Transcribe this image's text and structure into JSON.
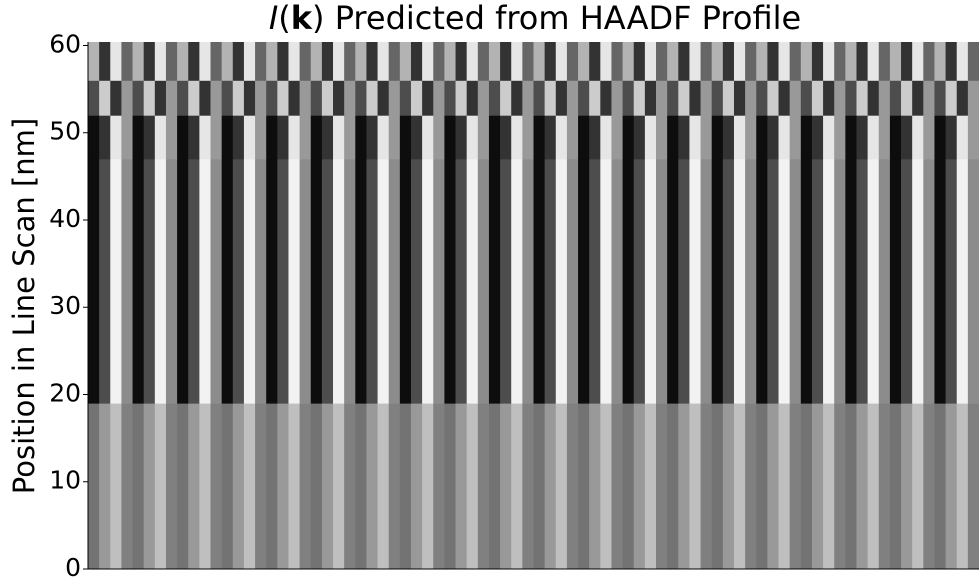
{
  "chart_data": {
    "type": "heatmap",
    "title": [
      "I",
      "(",
      "k",
      ") Predicted from HAADF Profile"
    ],
    "ylabel": "Position in Line Scan [nm]",
    "colormap": "gray",
    "zlim": [
      0,
      1
    ],
    "ylim": [
      0,
      60.4
    ],
    "yticks": [
      0,
      10,
      20,
      30,
      40,
      50,
      60
    ],
    "y_edges": [
      0,
      19,
      47,
      52,
      56,
      60.4
    ],
    "z": [
      [
        0.45,
        0.6,
        0.75,
        0.5,
        0.45,
        0.6,
        0.75,
        0.5,
        0.45,
        0.6,
        0.75,
        0.5,
        0.45,
        0.6,
        0.75,
        0.5,
        0.45,
        0.6,
        0.75,
        0.5,
        0.45,
        0.6,
        0.75,
        0.5,
        0.45,
        0.6,
        0.75,
        0.5,
        0.45,
        0.6,
        0.75,
        0.5,
        0.45,
        0.6,
        0.75,
        0.5,
        0.45,
        0.6,
        0.75,
        0.5,
        0.45,
        0.6,
        0.75,
        0.5,
        0.45,
        0.6,
        0.75,
        0.5,
        0.45,
        0.6,
        0.75,
        0.5,
        0.45,
        0.6,
        0.75,
        0.5,
        0.45,
        0.6,
        0.75,
        0.5,
        0.45,
        0.6,
        0.75,
        0.5,
        0.45,
        0.6,
        0.75,
        0.5,
        0.45,
        0.6,
        0.75,
        0.5,
        0.45,
        0.6,
        0.75,
        0.5,
        0.45,
        0.6,
        0.75,
        0.5
      ],
      [
        0.05,
        0.3,
        0.95,
        0.55,
        0.05,
        0.3,
        0.95,
        0.55,
        0.05,
        0.3,
        0.95,
        0.55,
        0.05,
        0.3,
        0.95,
        0.55,
        0.05,
        0.3,
        0.95,
        0.55,
        0.05,
        0.3,
        0.95,
        0.55,
        0.05,
        0.3,
        0.95,
        0.55,
        0.05,
        0.3,
        0.95,
        0.55,
        0.05,
        0.3,
        0.95,
        0.55,
        0.05,
        0.3,
        0.95,
        0.55,
        0.05,
        0.3,
        0.95,
        0.55,
        0.05,
        0.3,
        0.95,
        0.55,
        0.05,
        0.3,
        0.95,
        0.55,
        0.05,
        0.3,
        0.95,
        0.55,
        0.05,
        0.3,
        0.95,
        0.55,
        0.05,
        0.3,
        0.95,
        0.55,
        0.05,
        0.3,
        0.95,
        0.55,
        0.05,
        0.3,
        0.95,
        0.55,
        0.05,
        0.3,
        0.95,
        0.55,
        0.05,
        0.3,
        0.95,
        0.55
      ],
      [
        0.05,
        0.2,
        0.9,
        0.6,
        0.05,
        0.2,
        0.9,
        0.6,
        0.05,
        0.2,
        0.9,
        0.6,
        0.05,
        0.2,
        0.9,
        0.6,
        0.05,
        0.2,
        0.9,
        0.6,
        0.05,
        0.2,
        0.9,
        0.6,
        0.05,
        0.2,
        0.9,
        0.6,
        0.05,
        0.2,
        0.9,
        0.6,
        0.05,
        0.2,
        0.9,
        0.6,
        0.05,
        0.2,
        0.9,
        0.6,
        0.05,
        0.2,
        0.9,
        0.6,
        0.05,
        0.2,
        0.9,
        0.6,
        0.05,
        0.2,
        0.9,
        0.6,
        0.05,
        0.2,
        0.9,
        0.6,
        0.05,
        0.2,
        0.9,
        0.6,
        0.05,
        0.2,
        0.9,
        0.6,
        0.05,
        0.2,
        0.9,
        0.6,
        0.05,
        0.2,
        0.9,
        0.6,
        0.05,
        0.2,
        0.9,
        0.6,
        0.05,
        0.2,
        0.9,
        0.6
      ],
      [
        0.3,
        0.8,
        0.2,
        0.6,
        0.3,
        0.8,
        0.2,
        0.6,
        0.3,
        0.8,
        0.2,
        0.6,
        0.3,
        0.8,
        0.2,
        0.6,
        0.3,
        0.8,
        0.2,
        0.6,
        0.3,
        0.8,
        0.2,
        0.6,
        0.3,
        0.8,
        0.2,
        0.6,
        0.3,
        0.8,
        0.2,
        0.6,
        0.3,
        0.8,
        0.2,
        0.6,
        0.3,
        0.8,
        0.2,
        0.6,
        0.3,
        0.8,
        0.2,
        0.6,
        0.3,
        0.8,
        0.2,
        0.6,
        0.3,
        0.8,
        0.2,
        0.6,
        0.3,
        0.8,
        0.2,
        0.6,
        0.3,
        0.8,
        0.2,
        0.6,
        0.3,
        0.8,
        0.2,
        0.6,
        0.3,
        0.8,
        0.2,
        0.6,
        0.3,
        0.8,
        0.2,
        0.6,
        0.3,
        0.8,
        0.2,
        0.6,
        0.3,
        0.8,
        0.2,
        0.6
      ],
      [
        0.7,
        0.2,
        0.9,
        0.4,
        0.7,
        0.2,
        0.9,
        0.4,
        0.7,
        0.2,
        0.9,
        0.4,
        0.7,
        0.2,
        0.9,
        0.4,
        0.7,
        0.2,
        0.9,
        0.4,
        0.7,
        0.2,
        0.9,
        0.4,
        0.7,
        0.2,
        0.9,
        0.4,
        0.7,
        0.2,
        0.9,
        0.4,
        0.7,
        0.2,
        0.9,
        0.4,
        0.7,
        0.2,
        0.9,
        0.4,
        0.7,
        0.2,
        0.9,
        0.4,
        0.7,
        0.2,
        0.9,
        0.4,
        0.7,
        0.2,
        0.9,
        0.4,
        0.7,
        0.2,
        0.9,
        0.4,
        0.7,
        0.2,
        0.9,
        0.4,
        0.7,
        0.2,
        0.9,
        0.4,
        0.7,
        0.2,
        0.9,
        0.4,
        0.7,
        0.2,
        0.9,
        0.4,
        0.7,
        0.2,
        0.9,
        0.4,
        0.7,
        0.2,
        0.9,
        0.4
      ]
    ]
  }
}
